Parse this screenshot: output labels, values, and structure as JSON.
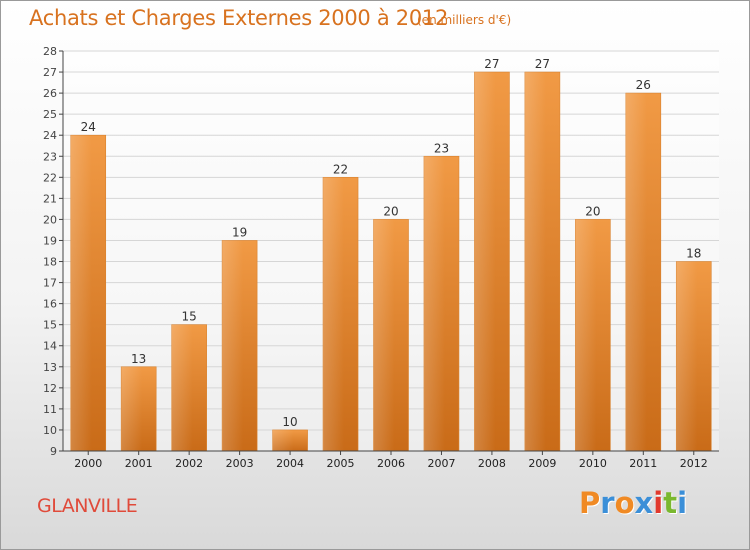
{
  "chart_data": {
    "type": "bar",
    "title": "Achats et Charges Externes 2000 à 2012",
    "subtitle": "(en milliers d'€)",
    "xlabel": "",
    "ylabel": "",
    "categories": [
      "2000",
      "2001",
      "2002",
      "2003",
      "2004",
      "2005",
      "2006",
      "2007",
      "2008",
      "2009",
      "2010",
      "2011",
      "2012"
    ],
    "values": [
      24,
      13,
      15,
      19,
      10,
      22,
      20,
      23,
      27,
      27,
      20,
      26,
      18
    ],
    "ylim": [
      9,
      28
    ],
    "yticks": [
      9,
      10,
      11,
      12,
      13,
      14,
      15,
      16,
      17,
      18,
      19,
      20,
      21,
      22,
      23,
      24,
      25,
      26,
      27,
      28
    ],
    "grid": true,
    "legend": "none",
    "bar_color": "#f19a45",
    "bar_color_dark": "#c96b18"
  },
  "footer": {
    "city": "GLANVILLE",
    "logo": "Proxiti",
    "logo_colors": [
      "#f08a24",
      "#3b8fd8",
      "#f08a24",
      "#3b8fd8",
      "#e23a2e",
      "#7ab82f",
      "#3b8fd8"
    ]
  },
  "colors": {
    "title": "#d8721f",
    "city": "#e04a3a",
    "axis": "#444444",
    "grid": "#d6d6d6"
  }
}
